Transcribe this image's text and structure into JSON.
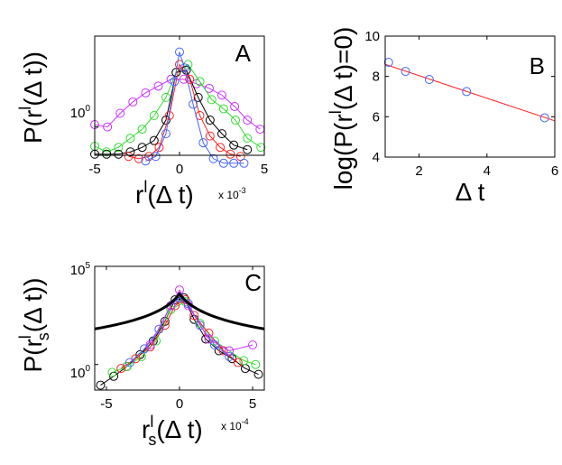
{
  "chart_data": [
    {
      "panel": "A",
      "type": "line",
      "xlim": [
        -5,
        5
      ],
      "ylog": true,
      "ylim_log10": [
        -0.25,
        0.8
      ],
      "xticks": [
        "-5",
        "0",
        "5"
      ],
      "ytick_label": "10",
      "ytick_exp": "0",
      "ytick_value_log10": 0,
      "ylabel_parts": [
        "P(r",
        "l",
        "(Δ t))"
      ],
      "xlabel_parts": [
        "r",
        "l",
        "(Δ t)"
      ],
      "x_multiplier": "x 10",
      "x_multiplier_exp": "-3",
      "series": [
        {
          "name": "magenta",
          "color": "#cc33ff",
          "x": [
            -5,
            -4.25,
            -3.5,
            -2.75,
            -2,
            -1.25,
            -0.5,
            0.25,
            1,
            1.75,
            2.5,
            3.25,
            4,
            4.75
          ],
          "ylog": [
            0.02,
            0.0,
            0.12,
            0.22,
            0.3,
            0.36,
            0.42,
            0.42,
            0.38,
            0.34,
            0.28,
            0.18,
            0.06,
            -0.02
          ]
        },
        {
          "name": "green",
          "color": "#33dd33",
          "x": [
            -5,
            -4.3,
            -3.6,
            -2.9,
            -2.2,
            -1.5,
            -0.8,
            -0.2,
            0.5,
            1.2,
            1.9,
            2.6,
            3.3,
            4.0,
            4.8
          ],
          "ylog": [
            -0.17,
            -0.22,
            -0.18,
            -0.1,
            -0.02,
            0.1,
            0.26,
            0.48,
            0.55,
            0.4,
            0.24,
            0.16,
            0.06,
            -0.1,
            -0.18
          ]
        },
        {
          "name": "black",
          "color": "#000000",
          "x": [
            -5,
            -4.3,
            -3.6,
            -2.9,
            -2.2,
            -1.5,
            -0.8,
            -0.2,
            0.4,
            1.1,
            1.8,
            2.5,
            3.2,
            4.0
          ],
          "ylog": [
            -0.24,
            -0.24,
            -0.24,
            -0.22,
            -0.18,
            -0.12,
            0.06,
            0.48,
            0.5,
            0.26,
            0.06,
            -0.06,
            -0.16,
            -0.2
          ]
        },
        {
          "name": "red",
          "color": "#ff2222",
          "x": [
            -3.0,
            -2.4,
            -1.8,
            -1.2,
            -0.6,
            0.0,
            0.6,
            1.2,
            1.8,
            2.4,
            3.0,
            3.6
          ],
          "ylog": [
            -0.26,
            -0.28,
            -0.26,
            -0.18,
            0.1,
            0.55,
            0.42,
            0.1,
            -0.08,
            -0.18,
            -0.24,
            -0.26
          ]
        },
        {
          "name": "blue",
          "color": "#4466ff",
          "x": [
            -2.0,
            -1.4,
            -0.8,
            -0.3,
            0.0,
            0.3,
            0.8,
            1.4,
            2.0,
            2.6,
            3.2,
            3.8
          ],
          "ylog": [
            -0.3,
            -0.26,
            -0.06,
            0.4,
            0.66,
            0.52,
            0.2,
            -0.14,
            -0.28,
            -0.32,
            -0.32,
            -0.32
          ]
        }
      ]
    },
    {
      "panel": "B",
      "type": "scatter",
      "xlim": [
        1,
        6
      ],
      "ylim": [
        4,
        10
      ],
      "xticks": [
        "2",
        "4",
        "6"
      ],
      "yticks": [
        "4",
        "6",
        "8",
        "10"
      ],
      "xtick_values": [
        2,
        4,
        6
      ],
      "ytick_values": [
        4,
        6,
        8,
        10
      ],
      "ylabel_parts": [
        "log(P(r",
        "l",
        "(Δ t)=0)"
      ],
      "xlabel": "Δ t",
      "points": {
        "x": [
          1.1,
          1.6,
          2.3,
          3.4,
          5.7
        ],
        "y": [
          8.7,
          8.25,
          7.85,
          7.25,
          5.95
        ],
        "color": "#4466ff"
      },
      "fit_line": {
        "x": [
          1,
          6
        ],
        "y": [
          8.6,
          5.8
        ],
        "color": "#ff2222"
      }
    },
    {
      "panel": "C",
      "type": "line",
      "xlim": [
        -5.8,
        5.8
      ],
      "ylog": true,
      "ylim_log10": [
        -1.3,
        5.0
      ],
      "xticks": [
        "-5",
        "0",
        "5"
      ],
      "xtick_values": [
        -5,
        0,
        5
      ],
      "yticks": [
        {
          "base": "10",
          "exp": "0",
          "value_log10": 0
        },
        {
          "base": "10",
          "exp": "5",
          "value_log10": 5
        }
      ],
      "ylabel_parts": [
        "P(r",
        "l",
        "s",
        "(Δ t))"
      ],
      "xlabel_parts": [
        "r",
        "l",
        "s",
        "(Δ t)"
      ],
      "x_multiplier": "x 10",
      "x_multiplier_exp": "-4",
      "fit": {
        "name": "fit",
        "color": "#000000",
        "gamma": 0.85,
        "peak_log10": 3.6
      },
      "series": [
        {
          "name": "black",
          "color": "#000000",
          "x": [
            -5.4,
            -4.5,
            -3.6,
            -2.7,
            -1.8,
            -1.0,
            -0.3,
            0.3,
            1.0,
            1.8,
            2.7,
            3.6,
            4.5,
            5.4
          ],
          "ylog": [
            -1.05,
            -0.6,
            -0.1,
            0.5,
            1.2,
            2.2,
            3.3,
            3.4,
            2.3,
            1.3,
            0.7,
            0.3,
            -0.2,
            -0.5
          ]
        },
        {
          "name": "green",
          "color": "#33dd33",
          "x": [
            -4.6,
            -3.6,
            -2.6,
            -1.6,
            -0.6,
            0.4,
            1.4,
            2.4,
            3.4,
            4.4,
            5.2
          ],
          "ylog": [
            -0.4,
            -0.1,
            0.4,
            1.2,
            2.8,
            3.2,
            2.1,
            1.2,
            0.7,
            0.2,
            0.0
          ]
        },
        {
          "name": "red",
          "color": "#ff2222",
          "x": [
            -4.0,
            -3.0,
            -2.0,
            -1.0,
            -0.3,
            0.4,
            1.0,
            2.0,
            3.0,
            4.0
          ],
          "ylog": [
            -0.2,
            0.3,
            0.9,
            2.0,
            3.0,
            3.3,
            2.5,
            1.6,
            0.7,
            0.1
          ]
        },
        {
          "name": "blue",
          "color": "#4466ff",
          "x": [
            -3.4,
            -2.4,
            -1.4,
            -0.6,
            0.0,
            0.6,
            1.4,
            2.4,
            3.4
          ],
          "ylog": [
            0.1,
            0.8,
            1.8,
            3.0,
            3.4,
            3.1,
            2.0,
            1.0,
            0.4
          ]
        },
        {
          "name": "magenta",
          "color": "#cc33ff",
          "x": [
            -2.0,
            -0.6,
            0.0,
            0.6,
            2.0,
            3.4,
            5.0
          ],
          "ylog": [
            1.0,
            3.0,
            3.8,
            3.0,
            1.3,
            0.7,
            1.0
          ]
        }
      ]
    }
  ]
}
